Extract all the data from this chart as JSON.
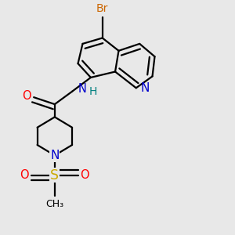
{
  "bg_color": "#e8e8e8",
  "bond_color": "#000000",
  "bond_width": 1.6,
  "figsize": [
    3.0,
    3.0
  ],
  "dpi": 100,
  "colors": {
    "N": "#0000cc",
    "O": "#ff0000",
    "Br": "#cc6600",
    "S": "#ccaa00",
    "NH": "#0000cc",
    "H": "#008080",
    "C": "#000000"
  }
}
